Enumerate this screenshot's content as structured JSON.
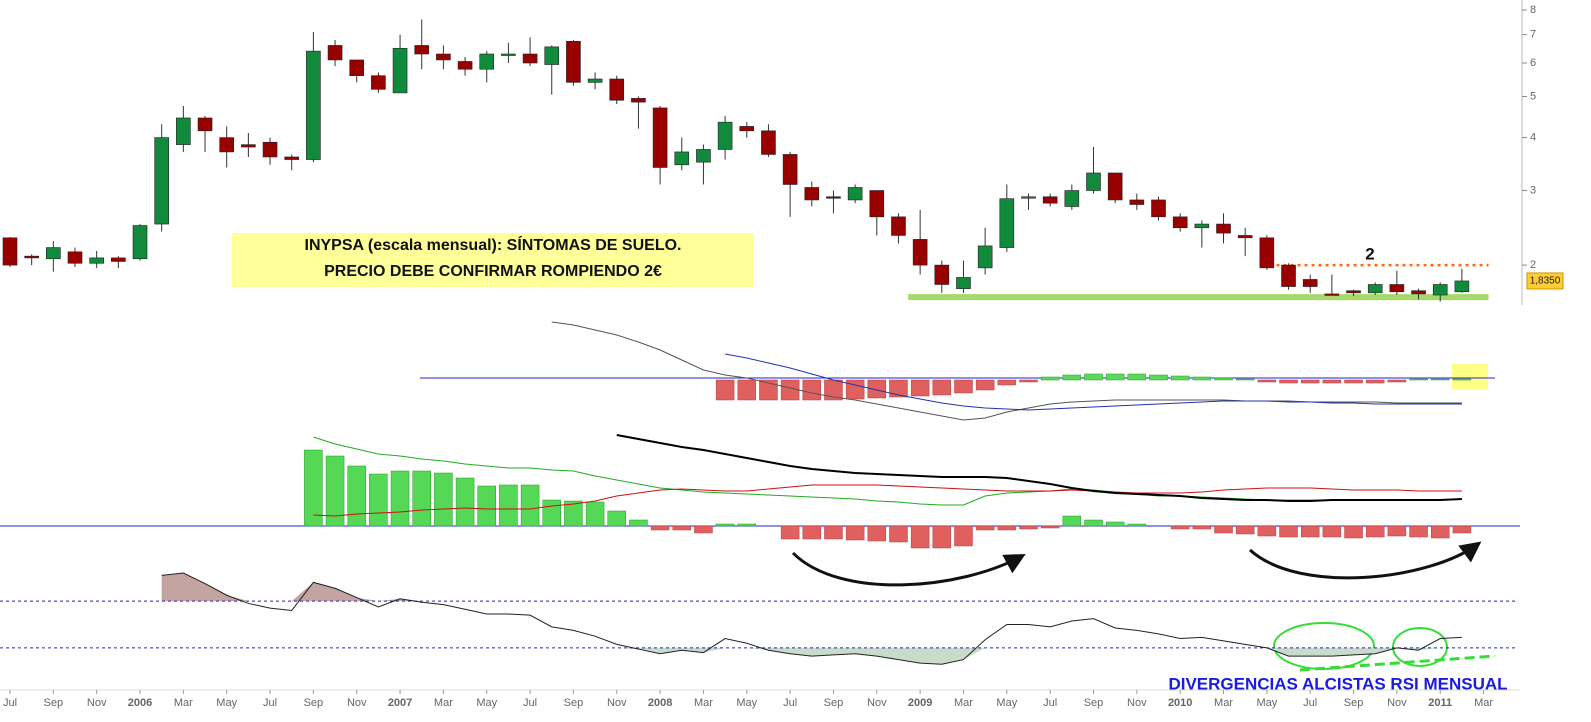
{
  "chart_data": [
    {
      "type": "candlestick",
      "log": true,
      "title_box": [
        "INYPSA (escala mensual): SÍNTOMAS DE SUELO.",
        "PRECIO DEBE CONFIRMAR ROMPIENDO 2€"
      ],
      "marker_label": "2",
      "note": "DIVERGENCIAS ALCISTAS RSI MENSUAL",
      "x": [
        "2005-07",
        "2005-08",
        "2005-09",
        "2005-10",
        "2005-11",
        "2005-12",
        "2006-01",
        "2006-02",
        "2006-03",
        "2006-04",
        "2006-05",
        "2006-06",
        "2006-07",
        "2006-08",
        "2006-09",
        "2006-10",
        "2006-11",
        "2006-12",
        "2007-01",
        "2007-02",
        "2007-03",
        "2007-04",
        "2007-05",
        "2007-06",
        "2007-07",
        "2007-08",
        "2007-09",
        "2007-10",
        "2007-11",
        "2007-12",
        "2008-01",
        "2008-02",
        "2008-03",
        "2008-04",
        "2008-05",
        "2008-06",
        "2008-07",
        "2008-08",
        "2008-09",
        "2008-10",
        "2008-11",
        "2008-12",
        "2009-01",
        "2009-02",
        "2009-03",
        "2009-04",
        "2009-05",
        "2009-06",
        "2009-07",
        "2009-08",
        "2009-09",
        "2009-10",
        "2009-11",
        "2009-12",
        "2010-01",
        "2010-02",
        "2010-03",
        "2010-04",
        "2010-05",
        "2010-06",
        "2010-07",
        "2010-08",
        "2010-09",
        "2010-10",
        "2010-11",
        "2010-12",
        "2011-01",
        "2011-02"
      ],
      "open": [
        2.32,
        2.1,
        2.07,
        2.15,
        2.02,
        2.08,
        2.07,
        2.5,
        3.85,
        4.45,
        4.0,
        3.85,
        3.9,
        3.6,
        3.55,
        6.6,
        6.1,
        5.6,
        5.1,
        6.6,
        6.3,
        6.05,
        5.8,
        6.25,
        6.3,
        5.95,
        6.75,
        5.4,
        5.5,
        4.95,
        4.7,
        3.45,
        3.5,
        3.75,
        4.25,
        4.15,
        3.65,
        3.05,
        2.9,
        2.85,
        3.0,
        2.6,
        2.3,
        2.0,
        1.76,
        1.97,
        2.2,
        2.88,
        2.9,
        2.75,
        3.0,
        3.3,
        2.85,
        2.85,
        2.6,
        2.45,
        2.5,
        2.35,
        2.32,
        2.0,
        1.85,
        1.71,
        1.74,
        1.72,
        1.8,
        1.74,
        1.7,
        1.73
      ],
      "high": [
        2.33,
        2.12,
        2.28,
        2.2,
        2.16,
        2.1,
        2.5,
        4.3,
        4.75,
        4.5,
        4.25,
        4.1,
        4.0,
        3.65,
        7.1,
        6.8,
        6.1,
        5.7,
        7.0,
        7.6,
        6.6,
        6.2,
        6.4,
        6.7,
        6.9,
        6.6,
        6.8,
        5.7,
        5.6,
        5.0,
        4.75,
        4.0,
        3.85,
        4.5,
        4.35,
        4.3,
        3.7,
        3.15,
        3.0,
        3.1,
        3.0,
        2.65,
        2.7,
        2.05,
        2.05,
        2.45,
        3.1,
        2.95,
        2.95,
        3.1,
        3.8,
        3.3,
        2.95,
        2.9,
        2.65,
        2.55,
        2.65,
        2.45,
        2.35,
        2.02,
        1.9,
        1.9,
        1.75,
        1.82,
        1.94,
        1.76,
        1.82,
        1.96
      ],
      "low": [
        1.98,
        2.0,
        1.93,
        1.98,
        1.97,
        1.97,
        2.05,
        2.4,
        3.7,
        3.7,
        3.4,
        3.6,
        3.45,
        3.35,
        3.5,
        5.9,
        5.4,
        5.1,
        5.1,
        5.8,
        5.8,
        5.6,
        5.4,
        6.0,
        5.9,
        5.05,
        5.3,
        5.2,
        4.8,
        4.2,
        3.1,
        3.35,
        3.1,
        3.55,
        4.0,
        3.6,
        2.6,
        2.75,
        2.65,
        2.8,
        2.35,
        2.25,
        1.9,
        1.72,
        1.72,
        1.9,
        2.15,
        2.7,
        2.75,
        2.7,
        2.95,
        2.8,
        2.7,
        2.55,
        2.4,
        2.2,
        2.25,
        2.1,
        1.95,
        1.75,
        1.72,
        1.7,
        1.69,
        1.7,
        1.7,
        1.66,
        1.64,
        1.72
      ],
      "close": [
        2.0,
        2.08,
        2.2,
        2.02,
        2.08,
        2.04,
        2.48,
        4.0,
        4.45,
        4.15,
        3.7,
        3.8,
        3.6,
        3.55,
        6.4,
        6.1,
        5.6,
        5.2,
        6.5,
        6.3,
        6.1,
        5.8,
        6.3,
        6.3,
        6.0,
        6.55,
        5.4,
        5.5,
        4.9,
        4.85,
        3.4,
        3.7,
        3.75,
        4.35,
        4.15,
        3.65,
        3.1,
        2.85,
        2.88,
        3.05,
        2.6,
        2.35,
        2.0,
        1.8,
        1.87,
        2.22,
        2.87,
        2.9,
        2.8,
        3.0,
        3.3,
        2.85,
        2.78,
        2.6,
        2.45,
        2.5,
        2.38,
        2.32,
        1.97,
        1.78,
        1.78,
        1.7,
        1.72,
        1.8,
        1.73,
        1.71,
        1.8,
        1.835
      ],
      "up_color": "#128a3c",
      "down_color": "#990000",
      "ylim": [
        1.55,
        8.45
      ],
      "yticks": [
        2,
        3,
        4,
        5,
        6,
        7,
        8
      ],
      "last_price": {
        "value": 1.835,
        "label": "1,8350"
      },
      "levels": [
        {
          "value": 2,
          "color": "#ff6a13",
          "from": "2010-06",
          "to": "2011-03"
        },
        {
          "value": 1.68,
          "color": "#a6d96a",
          "from": "2009-01",
          "to": "2011-03"
        }
      ],
      "xticks": [
        {
          "value": "2005-07",
          "label": "Jul"
        },
        {
          "value": "2005-09",
          "label": "Sep"
        },
        {
          "value": "2005-11",
          "label": "Nov"
        },
        {
          "value": "2006-01",
          "label": "2006"
        },
        {
          "value": "2006-03",
          "label": "Mar"
        },
        {
          "value": "2006-05",
          "label": "May"
        },
        {
          "value": "2006-07",
          "label": "Jul"
        },
        {
          "value": "2006-09",
          "label": "Sep"
        },
        {
          "value": "2006-11",
          "label": "Nov"
        },
        {
          "value": "2007-01",
          "label": "2007"
        },
        {
          "value": "2007-03",
          "label": "Mar"
        },
        {
          "value": "2007-05",
          "label": "May"
        },
        {
          "value": "2007-07",
          "label": "Jul"
        },
        {
          "value": "2007-09",
          "label": "Sep"
        },
        {
          "value": "2007-11",
          "label": "Nov"
        },
        {
          "value": "2008-01",
          "label": "2008"
        },
        {
          "value": "2008-03",
          "label": "Mar"
        },
        {
          "value": "2008-05",
          "label": "May"
        },
        {
          "value": "2008-07",
          "label": "Jul"
        },
        {
          "value": "2008-09",
          "label": "Sep"
        },
        {
          "value": "2008-11",
          "label": "Nov"
        },
        {
          "value": "2009-01",
          "label": "2009"
        },
        {
          "value": "2009-03",
          "label": "Mar"
        },
        {
          "value": "2009-05",
          "label": "May"
        },
        {
          "value": "2009-07",
          "label": "Jul"
        },
        {
          "value": "2009-09",
          "label": "Sep"
        },
        {
          "value": "2009-11",
          "label": "Nov"
        },
        {
          "value": "2010-01",
          "label": "2010"
        },
        {
          "value": "2010-03",
          "label": "Mar"
        },
        {
          "value": "2010-05",
          "label": "May"
        },
        {
          "value": "2010-07",
          "label": "Jul"
        },
        {
          "value": "2010-09",
          "label": "Sep"
        },
        {
          "value": "2010-11",
          "label": "Nov"
        },
        {
          "value": "2011-01",
          "label": "2011"
        },
        {
          "value": "2011-03",
          "label": "Mar"
        }
      ]
    },
    {
      "type": "indicator",
      "ylim": [
        -50,
        60
      ],
      "series": [
        {
          "type": "bar",
          "color": "#e06060",
          "color_up": "#5ad85a",
          "values": [
            null,
            null,
            null,
            null,
            null,
            null,
            null,
            null,
            null,
            null,
            null,
            null,
            null,
            null,
            null,
            null,
            null,
            null,
            null,
            null,
            null,
            null,
            null,
            null,
            null,
            null,
            null,
            null,
            null,
            null,
            null,
            null,
            null,
            -20,
            -20,
            -20,
            -20,
            -20,
            -20,
            -19,
            -18,
            -17,
            -16,
            -15,
            -13,
            -10,
            -5,
            -2,
            3,
            5,
            6,
            6,
            6,
            5,
            4,
            3,
            2,
            1,
            -2,
            -3,
            -3,
            -3,
            -3,
            -3,
            -2,
            1,
            1,
            1
          ]
        },
        {
          "type": "line",
          "color": "#555555",
          "values": [
            null,
            null,
            null,
            null,
            null,
            null,
            null,
            null,
            null,
            null,
            null,
            null,
            null,
            null,
            null,
            null,
            null,
            null,
            null,
            null,
            null,
            null,
            null,
            null,
            null,
            58,
            55,
            50,
            45,
            38,
            30,
            20,
            10,
            5,
            2,
            -3,
            -8,
            -13,
            -17,
            -20,
            -24,
            -28,
            -32,
            -36,
            -40,
            -38,
            -32,
            -28,
            -24,
            -22,
            -21,
            -20,
            -20,
            -20,
            -20,
            -20,
            -20,
            -21,
            -21,
            -21,
            -22,
            -22,
            -22,
            -22,
            -23,
            -23,
            -23,
            -23
          ]
        },
        {
          "type": "line",
          "color": "#2233aa",
          "values": [
            null,
            null,
            null,
            null,
            null,
            null,
            null,
            null,
            null,
            null,
            null,
            null,
            null,
            null,
            null,
            null,
            null,
            null,
            null,
            null,
            null,
            null,
            null,
            null,
            null,
            null,
            null,
            null,
            null,
            null,
            null,
            null,
            null,
            26,
            22,
            17,
            12,
            6,
            0,
            -5,
            -10,
            -15,
            -19,
            -23,
            -26,
            -28,
            -29,
            -30,
            -29,
            -28,
            -27,
            -26,
            -25,
            -24,
            -23,
            -22,
            -21,
            -21,
            -21,
            -22,
            -22,
            -23,
            -23,
            -24,
            -24,
            -24,
            -24,
            -24
          ]
        }
      ]
    },
    {
      "type": "indicator",
      "ylim": [
        -34,
        96
      ],
      "series": [
        {
          "type": "bar",
          "color": "#e06060",
          "color_up": "#55d855",
          "values": [
            null,
            null,
            null,
            null,
            null,
            null,
            null,
            null,
            null,
            null,
            null,
            null,
            null,
            null,
            76,
            70,
            60,
            52,
            55,
            55,
            53,
            48,
            40,
            41,
            41,
            26,
            25,
            24,
            15,
            6,
            -4,
            -4,
            -7,
            2,
            2,
            null,
            -13,
            -13,
            -13,
            -14,
            -15,
            -16,
            -22,
            -22,
            -20,
            -4,
            -4,
            -3,
            -2,
            10,
            6,
            4,
            2,
            null,
            -3,
            -3,
            -7,
            -8,
            -10,
            -11,
            -11,
            -11,
            -12,
            -11,
            -10,
            -11,
            -12,
            -7
          ]
        },
        {
          "type": "line",
          "color": "#22aa22",
          "values": [
            null,
            null,
            null,
            null,
            null,
            null,
            null,
            null,
            null,
            null,
            null,
            null,
            null,
            null,
            89,
            82,
            77,
            72,
            70,
            67,
            65,
            62,
            60,
            58,
            58,
            56,
            55,
            50,
            46,
            42,
            38,
            36,
            34,
            33,
            32,
            31,
            30,
            29,
            28,
            27,
            25,
            24,
            22,
            21,
            21,
            30,
            33,
            34,
            35,
            37,
            36,
            34,
            32,
            30,
            30,
            29,
            28,
            27,
            26,
            26,
            26,
            26,
            26,
            26,
            26,
            26,
            26,
            27
          ]
        },
        {
          "type": "line",
          "color": "#cc1111",
          "values": [
            null,
            null,
            null,
            null,
            null,
            null,
            null,
            null,
            null,
            null,
            null,
            null,
            null,
            null,
            11,
            10,
            12,
            13,
            14,
            16,
            17,
            18,
            17,
            17,
            17,
            20,
            22,
            25,
            30,
            33,
            36,
            37,
            36,
            35,
            35,
            37,
            39,
            41,
            41,
            41,
            41,
            40,
            39,
            38,
            37,
            36,
            35,
            35,
            35,
            36,
            35,
            34,
            33,
            33,
            33,
            34,
            36,
            37,
            38,
            38,
            38,
            37,
            36,
            36,
            36,
            35,
            35,
            35
          ]
        },
        {
          "type": "line",
          "color": "#000000",
          "width": 2,
          "values": [
            null,
            null,
            null,
            null,
            null,
            null,
            null,
            null,
            null,
            null,
            null,
            null,
            null,
            null,
            null,
            null,
            null,
            null,
            null,
            null,
            null,
            null,
            null,
            null,
            null,
            null,
            null,
            null,
            91,
            87,
            83,
            79,
            76,
            72,
            68,
            64,
            60,
            57,
            55,
            53,
            52,
            51,
            50,
            49,
            49,
            49,
            48,
            45,
            42,
            38,
            35,
            33,
            32,
            31,
            30,
            28,
            27,
            26,
            26,
            25,
            25,
            26,
            26,
            26,
            26,
            26,
            26,
            27
          ]
        }
      ]
    },
    {
      "type": "rsi",
      "ylim": [
        0,
        100
      ],
      "levels": [
        70,
        30
      ],
      "fill_colors": [
        "#c4a4a0",
        "#c8dcc8"
      ],
      "series": [
        {
          "type": "line",
          "color": "#222222",
          "values": [
            null,
            null,
            null,
            null,
            null,
            null,
            null,
            92,
            94,
            85,
            75,
            68,
            64,
            62,
            86,
            81,
            73,
            65,
            72,
            69,
            67,
            63,
            59,
            59,
            58,
            48,
            45,
            40,
            33,
            29,
            25,
            28,
            26,
            38,
            34,
            28,
            25,
            23,
            24,
            25,
            23,
            20,
            17,
            16,
            20,
            37,
            50,
            50,
            48,
            53,
            55,
            47,
            45,
            42,
            38,
            39,
            36,
            33,
            30,
            23,
            23,
            23,
            24,
            25,
            30,
            28,
            38,
            39
          ]
        }
      ]
    }
  ]
}
